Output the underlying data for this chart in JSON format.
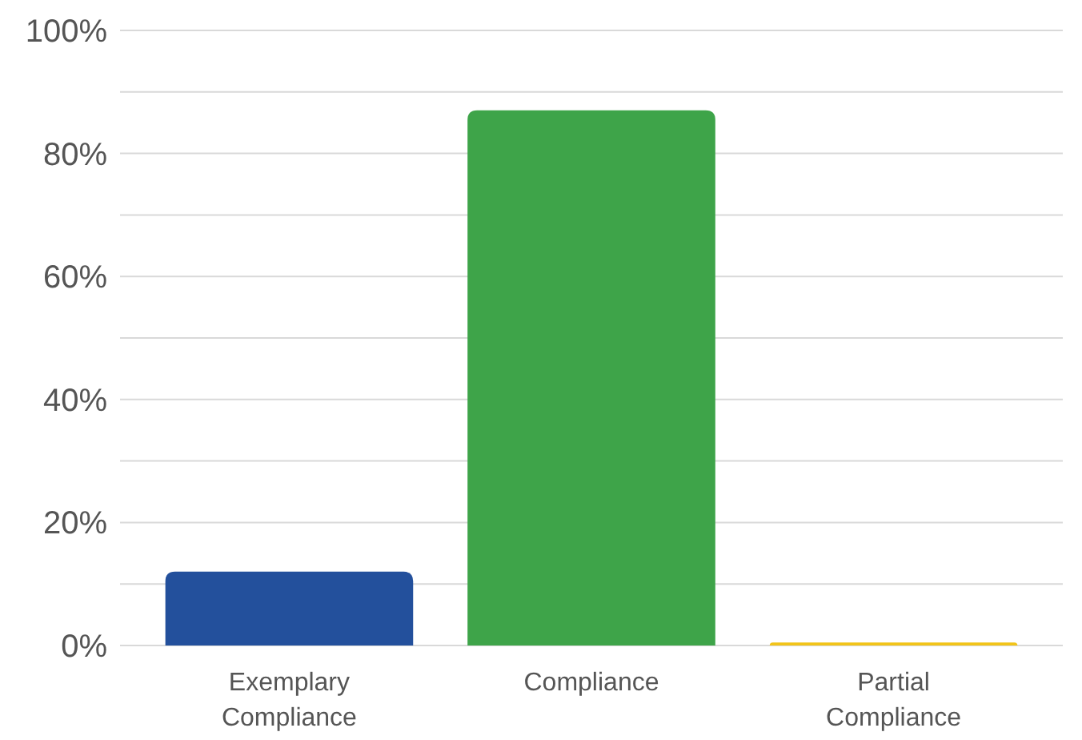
{
  "chart_data": {
    "type": "bar",
    "categories": [
      "Exemplary Compliance",
      "Compliance",
      "Partial Compliance"
    ],
    "values": [
      12,
      87,
      0.5
    ],
    "colors": [
      "#23509c",
      "#3ea449",
      "#f2c41a"
    ],
    "ylim": [
      0,
      100
    ],
    "yticks": [
      {
        "value": 0,
        "label": "0%"
      },
      {
        "value": 10,
        "label": null
      },
      {
        "value": 20,
        "label": "20%"
      },
      {
        "value": 30,
        "label": null
      },
      {
        "value": 40,
        "label": "40%"
      },
      {
        "value": 50,
        "label": null
      },
      {
        "value": 60,
        "label": "60%"
      },
      {
        "value": 70,
        "label": null
      },
      {
        "value": 80,
        "label": "80%"
      },
      {
        "value": 90,
        "label": null
      },
      {
        "value": 100,
        "label": "100%"
      }
    ],
    "grid": "y"
  }
}
